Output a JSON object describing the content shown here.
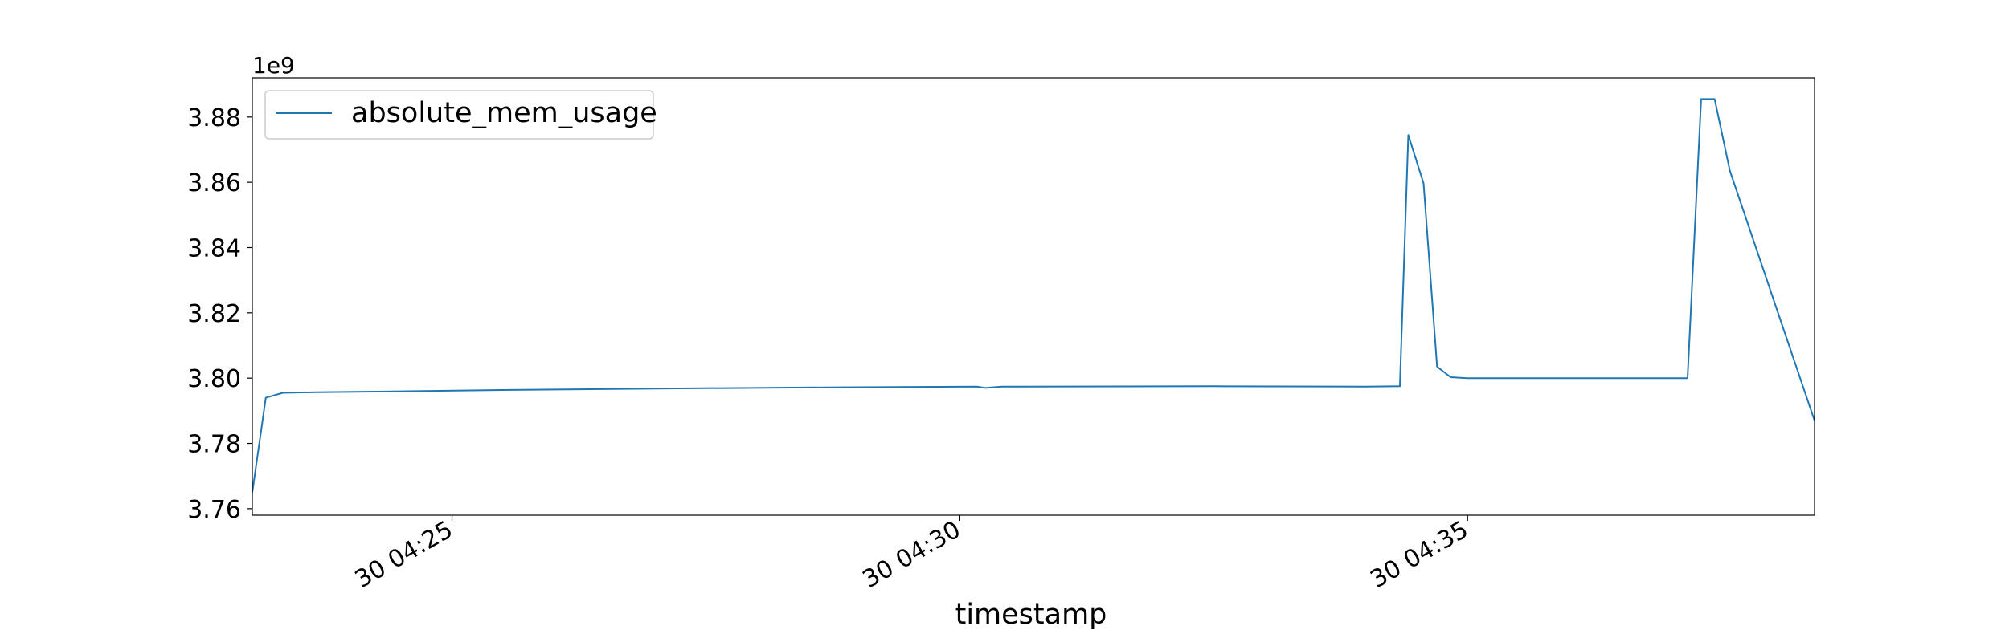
{
  "chart_data": {
    "type": "line",
    "xlabel": "timestamp",
    "ylabel": "",
    "offset_label": "1e9",
    "ylim": [
      3.758,
      3.892
    ],
    "xlim": [
      "30 04:23:02",
      "30 04:38:25"
    ],
    "yticks": [
      3.76,
      3.78,
      3.8,
      3.82,
      3.84,
      3.86,
      3.88
    ],
    "ytick_labels": [
      "3.76",
      "3.78",
      "3.80",
      "3.82",
      "3.84",
      "3.86",
      "3.88"
    ],
    "xticks": [
      "30 04:25:00",
      "30 04:30:00",
      "30 04:35:00"
    ],
    "xtick_labels": [
      "30 04:25",
      "30 04:30",
      "30 04:35"
    ],
    "legend": {
      "position": "top-left",
      "entries": [
        "absolute_mem_usage"
      ]
    },
    "grid": false,
    "series": [
      {
        "name": "absolute_mem_usage",
        "color": "#1f77b4",
        "points": [
          [
            "30 04:23:02",
            3.765
          ],
          [
            "30 04:23:10",
            3.794
          ],
          [
            "30 04:23:20",
            3.7955
          ],
          [
            "30 04:23:40",
            3.7957
          ],
          [
            "30 04:24:20",
            3.7959
          ],
          [
            "30 04:25:20",
            3.7963
          ],
          [
            "30 04:27:00",
            3.7968
          ],
          [
            "30 04:28:50",
            3.7972
          ],
          [
            "30 04:30:10",
            3.7974
          ],
          [
            "30 04:30:15",
            3.797
          ],
          [
            "30 04:30:25",
            3.7974
          ],
          [
            "30 04:32:30",
            3.7975
          ],
          [
            "30 04:34:00",
            3.7974
          ],
          [
            "30 04:34:20",
            3.7975
          ],
          [
            "30 04:34:25",
            3.8745
          ],
          [
            "30 04:34:34",
            3.8597
          ],
          [
            "30 04:34:42",
            3.8035
          ],
          [
            "30 04:34:50",
            3.8003
          ],
          [
            "30 04:35:00",
            3.8
          ],
          [
            "30 04:37:10",
            3.8
          ],
          [
            "30 04:37:18",
            3.8855
          ],
          [
            "30 04:37:26",
            3.8855
          ],
          [
            "30 04:37:35",
            3.8635
          ],
          [
            "30 04:38:25",
            3.787
          ]
        ]
      }
    ]
  }
}
